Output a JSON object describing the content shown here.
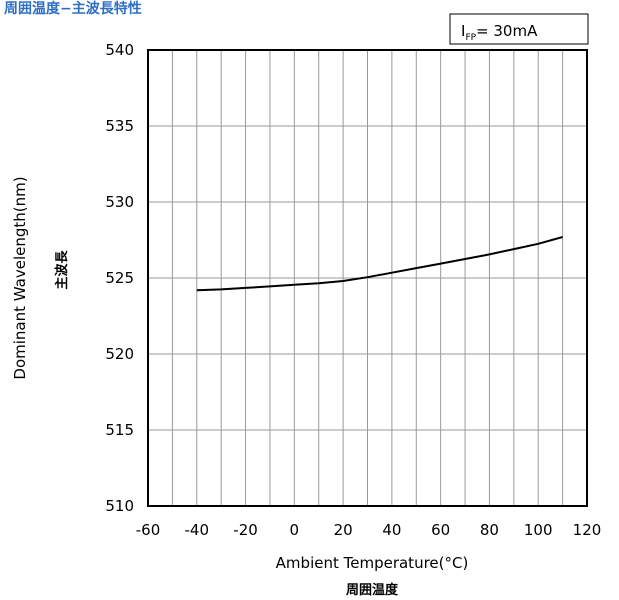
{
  "title": "周囲温度−主波長特性",
  "condition": {
    "symbol": "I",
    "subscript": "FP",
    "value": "= 30mA"
  },
  "chart_data": {
    "type": "line",
    "xlabel": "Ambient Temperature(°C)",
    "xlabel_jp": "周囲温度",
    "ylabel": "Dominant Wavelength(nm)",
    "ylabel_jp": "主波長",
    "xlim": [
      -60,
      120
    ],
    "ylim": [
      510,
      540
    ],
    "xticks": [
      -60,
      -40,
      -20,
      0,
      20,
      40,
      60,
      80,
      100,
      120
    ],
    "yticks": [
      510,
      515,
      520,
      525,
      530,
      535,
      540
    ],
    "x_grid_step": 10,
    "grid": true,
    "series": [
      {
        "x": [
          -40,
          -30,
          -20,
          -10,
          0,
          10,
          20,
          30,
          40,
          50,
          60,
          70,
          80,
          90,
          100,
          110
        ],
        "y": [
          524.2,
          524.25,
          524.35,
          524.45,
          524.55,
          524.65,
          524.8,
          525.05,
          525.35,
          525.65,
          525.95,
          526.25,
          526.55,
          526.9,
          527.25,
          527.7
        ],
        "color": "#000000"
      }
    ]
  }
}
